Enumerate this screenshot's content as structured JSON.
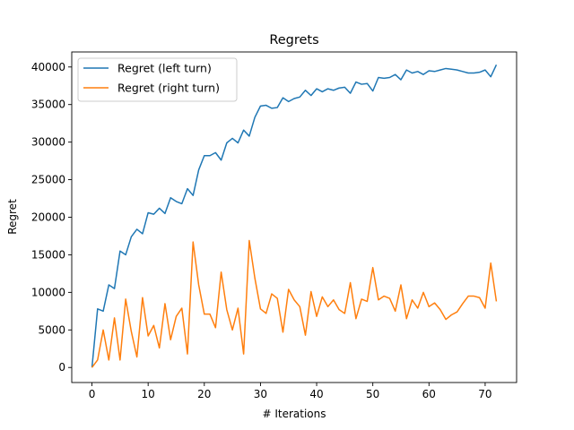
{
  "chart_data": {
    "type": "line",
    "title": "Regrets",
    "xlabel": "# Iterations",
    "ylabel": "Regret",
    "xlim": [
      -3.6,
      75.6
    ],
    "ylim": [
      -2000,
      42000
    ],
    "x_ticks": [
      0,
      10,
      20,
      30,
      40,
      50,
      60,
      70
    ],
    "y_ticks": [
      0,
      5000,
      10000,
      15000,
      20000,
      25000,
      30000,
      35000,
      40000
    ],
    "grid": false,
    "legend_position": "upper left",
    "x": [
      0,
      1,
      2,
      3,
      4,
      5,
      6,
      7,
      8,
      9,
      10,
      11,
      12,
      13,
      14,
      15,
      16,
      17,
      18,
      19,
      20,
      21,
      22,
      23,
      24,
      25,
      26,
      27,
      28,
      29,
      30,
      31,
      32,
      33,
      34,
      35,
      36,
      37,
      38,
      39,
      40,
      41,
      42,
      43,
      44,
      45,
      46,
      47,
      48,
      49,
      50,
      51,
      52,
      53,
      54,
      55,
      56,
      57,
      58,
      59,
      60,
      61,
      62,
      63,
      64,
      65,
      66,
      67,
      68,
      69,
      70,
      71,
      72
    ],
    "series": [
      {
        "name": "Regret (left turn)",
        "color": "#1f77b4",
        "values": [
          0,
          7800,
          7500,
          11000,
          10500,
          15500,
          15000,
          17400,
          18400,
          17800,
          20600,
          20400,
          21200,
          20500,
          22600,
          22100,
          21800,
          23800,
          22900,
          26300,
          28200,
          28200,
          28600,
          27600,
          29900,
          30500,
          29900,
          31600,
          30800,
          33300,
          34800,
          34900,
          34500,
          34600,
          35900,
          35400,
          35800,
          36000,
          36900,
          36200,
          37100,
          36700,
          37100,
          36900,
          37200,
          37300,
          36500,
          38000,
          37700,
          37800,
          36800,
          38600,
          38500,
          38600,
          39000,
          38300,
          39600,
          39200,
          39400,
          39000,
          39500,
          39400,
          39600,
          39800,
          39700,
          39600,
          39400,
          39200,
          39200,
          39300,
          39600,
          38700,
          40300
        ]
      },
      {
        "name": "Regret (right turn)",
        "color": "#ff7f0e",
        "values": [
          0,
          1000,
          5000,
          1000,
          6600,
          1000,
          9100,
          4800,
          1400,
          9300,
          4200,
          5600,
          2600,
          8500,
          3700,
          6800,
          7900,
          1800,
          16700,
          11000,
          7100,
          7100,
          5300,
          12700,
          7700,
          5000,
          7900,
          1800,
          16900,
          11900,
          7800,
          7200,
          9800,
          9200,
          4700,
          10400,
          9000,
          8100,
          4300,
          10100,
          6800,
          9400,
          8100,
          9000,
          7700,
          7200,
          11300,
          6500,
          9100,
          8800,
          13300,
          9000,
          9500,
          9200,
          7500,
          11000,
          6500,
          9000,
          7900,
          10000,
          8100,
          8600,
          7700,
          6400,
          7000,
          7400,
          8500,
          9500,
          9500,
          9300,
          7900,
          13900,
          8800
        ]
      }
    ]
  }
}
